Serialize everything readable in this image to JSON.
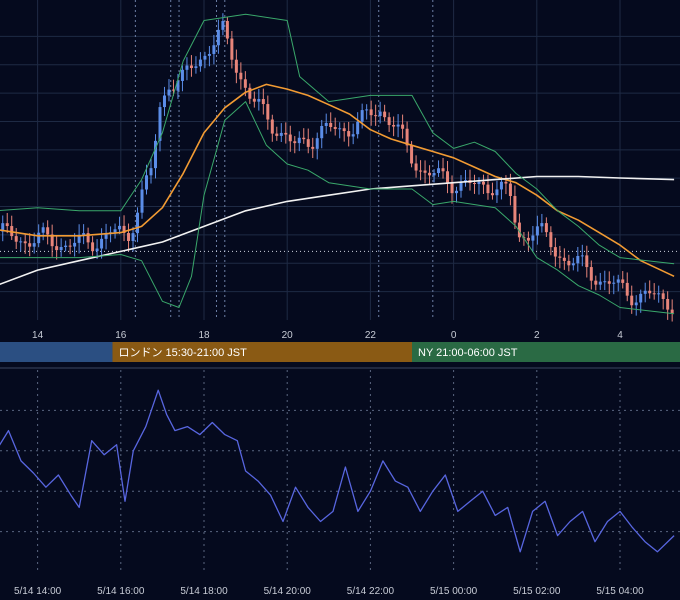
{
  "colors": {
    "background": "#050a1e",
    "grid": "#1e2a44",
    "up_candle": "#5b8de8",
    "down_candle": "#e8857a",
    "bollinger": "#3aa86b",
    "ma_fast": "#f29b33",
    "ma_slow": "#f2f2f2",
    "oscillator": "#5866e0",
    "session_tokyo": "#2b4f82",
    "session_london": "#8a5a14",
    "session_ny": "#2a6a44"
  },
  "sessions": [
    {
      "name": "tokyo",
      "label": "",
      "start": 0.0,
      "end": 2.8,
      "color": "#2b4f82"
    },
    {
      "name": "london",
      "label": "ロンドン 15:30-21:00 JST",
      "start": 2.8,
      "end": 10.0,
      "color": "#8a5a14"
    },
    {
      "name": "ny",
      "label": "NY 21:00-06:00 JST",
      "start": 10.0,
      "end": 18.5,
      "color": "#2a6a44"
    }
  ],
  "chart_data": [
    {
      "type": "candlestick",
      "title": "",
      "x_unit": "hours from 5/14 13:00 JST",
      "xlim": [
        0,
        16.3
      ],
      "ylim": [
        0,
        100
      ],
      "x_tick_labels": [
        {
          "x": 1,
          "label": "14"
        },
        {
          "x": 3,
          "label": "16"
        },
        {
          "x": 5,
          "label": "18"
        },
        {
          "x": 7,
          "label": "20"
        },
        {
          "x": 9,
          "label": "22"
        },
        {
          "x": 11,
          "label": "0"
        },
        {
          "x": 13,
          "label": "2"
        },
        {
          "x": 15,
          "label": "4"
        }
      ],
      "vertical_markers": [
        3.35,
        4.2,
        4.4,
        5.3,
        5.5,
        9.2,
        10.5
      ],
      "reference_level": 22,
      "price_path": [
        [
          0,
          29
        ],
        [
          0.5,
          26
        ],
        [
          1,
          26
        ],
        [
          1.5,
          25
        ],
        [
          2,
          24
        ],
        [
          2.5,
          26
        ],
        [
          3,
          28
        ],
        [
          3.2,
          26
        ],
        [
          3.5,
          38
        ],
        [
          3.8,
          48
        ],
        [
          4.0,
          68
        ],
        [
          4.2,
          77
        ],
        [
          4.5,
          76
        ],
        [
          5.0,
          85
        ],
        [
          5.5,
          92
        ],
        [
          5.8,
          83
        ],
        [
          6.2,
          70
        ],
        [
          6.8,
          62
        ],
        [
          7.2,
          55
        ],
        [
          7.8,
          60
        ],
        [
          8.3,
          61
        ],
        [
          8.8,
          63
        ],
        [
          9.3,
          68
        ],
        [
          9.6,
          63
        ],
        [
          10.0,
          53
        ],
        [
          10.4,
          47
        ],
        [
          10.8,
          45
        ],
        [
          11.2,
          44
        ],
        [
          11.6,
          42
        ],
        [
          12.0,
          44
        ],
        [
          12.4,
          40
        ],
        [
          12.6,
          26
        ],
        [
          13.0,
          30
        ],
        [
          13.5,
          22
        ],
        [
          14.0,
          18
        ],
        [
          14.5,
          14
        ],
        [
          15.0,
          10
        ],
        [
          15.5,
          8
        ],
        [
          16.3,
          6
        ]
      ],
      "series": [
        {
          "name": "",
          "role": "ma_fast",
          "points": [
            [
              0,
              29
            ],
            [
              1,
              27
            ],
            [
              2,
              27
            ],
            [
              3,
              28
            ],
            [
              3.5,
              30
            ],
            [
              4,
              36
            ],
            [
              4.5,
              47
            ],
            [
              5,
              60
            ],
            [
              5.5,
              68
            ],
            [
              6,
              73
            ],
            [
              6.5,
              75.5
            ],
            [
              7,
              74
            ],
            [
              7.5,
              72
            ],
            [
              8,
              69
            ],
            [
              8.5,
              66
            ],
            [
              9,
              61
            ],
            [
              9.5,
              58
            ],
            [
              10,
              56
            ],
            [
              10.5,
              54
            ],
            [
              11,
              52
            ],
            [
              11.5,
              49
            ],
            [
              12,
              46
            ],
            [
              12.5,
              44
            ],
            [
              13,
              40
            ],
            [
              13.5,
              35
            ],
            [
              14,
              32
            ],
            [
              14.5,
              28
            ],
            [
              15,
              24
            ],
            [
              15.5,
              19
            ],
            [
              16.3,
              14
            ]
          ]
        },
        {
          "name": "",
          "role": "ma_slow",
          "points": [
            [
              0,
              11
            ],
            [
              1,
              16
            ],
            [
              2,
              19
            ],
            [
              3,
              22
            ],
            [
              4,
              25
            ],
            [
              5,
              30
            ],
            [
              6,
              35
            ],
            [
              7,
              38
            ],
            [
              8,
              40
            ],
            [
              9,
              42
            ],
            [
              10,
              43
            ],
            [
              11,
              44
            ],
            [
              12,
              45
            ],
            [
              13,
              46
            ],
            [
              14,
              46
            ],
            [
              15,
              45.5
            ],
            [
              16.3,
              45
            ]
          ]
        },
        {
          "name": "",
          "role": "bollinger_upper",
          "points": [
            [
              0,
              35
            ],
            [
              1,
              36
            ],
            [
              2,
              35
            ],
            [
              3,
              35
            ],
            [
              3.5,
              45
            ],
            [
              4,
              60
            ],
            [
              4.5,
              83
            ],
            [
              5,
              96
            ],
            [
              5.5,
              97
            ],
            [
              6,
              98
            ],
            [
              7,
              96
            ],
            [
              7.3,
              78
            ],
            [
              8,
              70
            ],
            [
              9,
              72
            ],
            [
              10,
              72
            ],
            [
              10.5,
              60
            ],
            [
              11,
              55
            ],
            [
              11.5,
              57
            ],
            [
              12,
              54
            ],
            [
              12.5,
              47
            ],
            [
              13,
              42
            ],
            [
              13.5,
              35
            ],
            [
              14,
              30
            ],
            [
              14.5,
              24
            ],
            [
              15,
              20
            ],
            [
              16.3,
              18
            ]
          ]
        },
        {
          "name": "",
          "role": "bollinger_lower",
          "points": [
            [
              0,
              20
            ],
            [
              1,
              20
            ],
            [
              2,
              20
            ],
            [
              3,
              21
            ],
            [
              3.5,
              19
            ],
            [
              4,
              6
            ],
            [
              4.4,
              4
            ],
            [
              4.7,
              14
            ],
            [
              5,
              40
            ],
            [
              5.5,
              64
            ],
            [
              6,
              70
            ],
            [
              6.5,
              56
            ],
            [
              7,
              50
            ],
            [
              7.5,
              48
            ],
            [
              8,
              44
            ],
            [
              9,
              42
            ],
            [
              10,
              42
            ],
            [
              10.5,
              37
            ],
            [
              11,
              38
            ],
            [
              12,
              36
            ],
            [
              12.5,
              30
            ],
            [
              13,
              20
            ],
            [
              13.5,
              16
            ],
            [
              14,
              11
            ],
            [
              14.5,
              8
            ],
            [
              15,
              4
            ],
            [
              16.3,
              2
            ]
          ]
        }
      ]
    },
    {
      "type": "line",
      "title": "",
      "x_unit": "hours from 5/14 13:00 JST",
      "xlim": [
        0,
        16.3
      ],
      "ylim": [
        0,
        100
      ],
      "x_tick_labels": [
        {
          "x": 1,
          "label": "5/14 14:00"
        },
        {
          "x": 3,
          "label": "5/14 16:00"
        },
        {
          "x": 5,
          "label": "5/14 18:00"
        },
        {
          "x": 7,
          "label": "5/14 20:00"
        },
        {
          "x": 9,
          "label": "5/14 22:00"
        },
        {
          "x": 11,
          "label": "5/15 00:00"
        },
        {
          "x": 13,
          "label": "5/15 02:00"
        },
        {
          "x": 15,
          "label": "5/15 04:00"
        }
      ],
      "series": [
        {
          "name": "",
          "role": "oscillator",
          "points": [
            [
              0,
              60
            ],
            [
              0.3,
              70
            ],
            [
              0.6,
              55
            ],
            [
              0.9,
              49
            ],
            [
              1.2,
              42
            ],
            [
              1.5,
              48
            ],
            [
              1.8,
              38
            ],
            [
              2.0,
              32
            ],
            [
              2.3,
              65
            ],
            [
              2.6,
              58
            ],
            [
              2.9,
              63
            ],
            [
              3.1,
              35
            ],
            [
              3.3,
              60
            ],
            [
              3.6,
              72
            ],
            [
              3.9,
              90
            ],
            [
              4.1,
              78
            ],
            [
              4.3,
              70
            ],
            [
              4.6,
              72
            ],
            [
              4.9,
              68
            ],
            [
              5.2,
              74
            ],
            [
              5.5,
              68
            ],
            [
              5.8,
              65
            ],
            [
              6.0,
              50
            ],
            [
              6.3,
              45
            ],
            [
              6.6,
              38
            ],
            [
              6.9,
              25
            ],
            [
              7.2,
              42
            ],
            [
              7.5,
              32
            ],
            [
              7.8,
              25
            ],
            [
              8.1,
              30
            ],
            [
              8.4,
              52
            ],
            [
              8.7,
              30
            ],
            [
              9.0,
              40
            ],
            [
              9.3,
              55
            ],
            [
              9.6,
              45
            ],
            [
              9.9,
              42
            ],
            [
              10.2,
              30
            ],
            [
              10.5,
              40
            ],
            [
              10.8,
              48
            ],
            [
              11.1,
              30
            ],
            [
              11.4,
              35
            ],
            [
              11.7,
              40
            ],
            [
              12.0,
              28
            ],
            [
              12.3,
              32
            ],
            [
              12.6,
              10
            ],
            [
              12.9,
              30
            ],
            [
              13.2,
              35
            ],
            [
              13.5,
              18
            ],
            [
              13.8,
              25
            ],
            [
              14.1,
              30
            ],
            [
              14.4,
              15
            ],
            [
              14.7,
              25
            ],
            [
              15.0,
              30
            ],
            [
              15.3,
              22
            ],
            [
              15.6,
              15
            ],
            [
              15.9,
              10
            ],
            [
              16.3,
              18
            ]
          ]
        }
      ]
    }
  ]
}
